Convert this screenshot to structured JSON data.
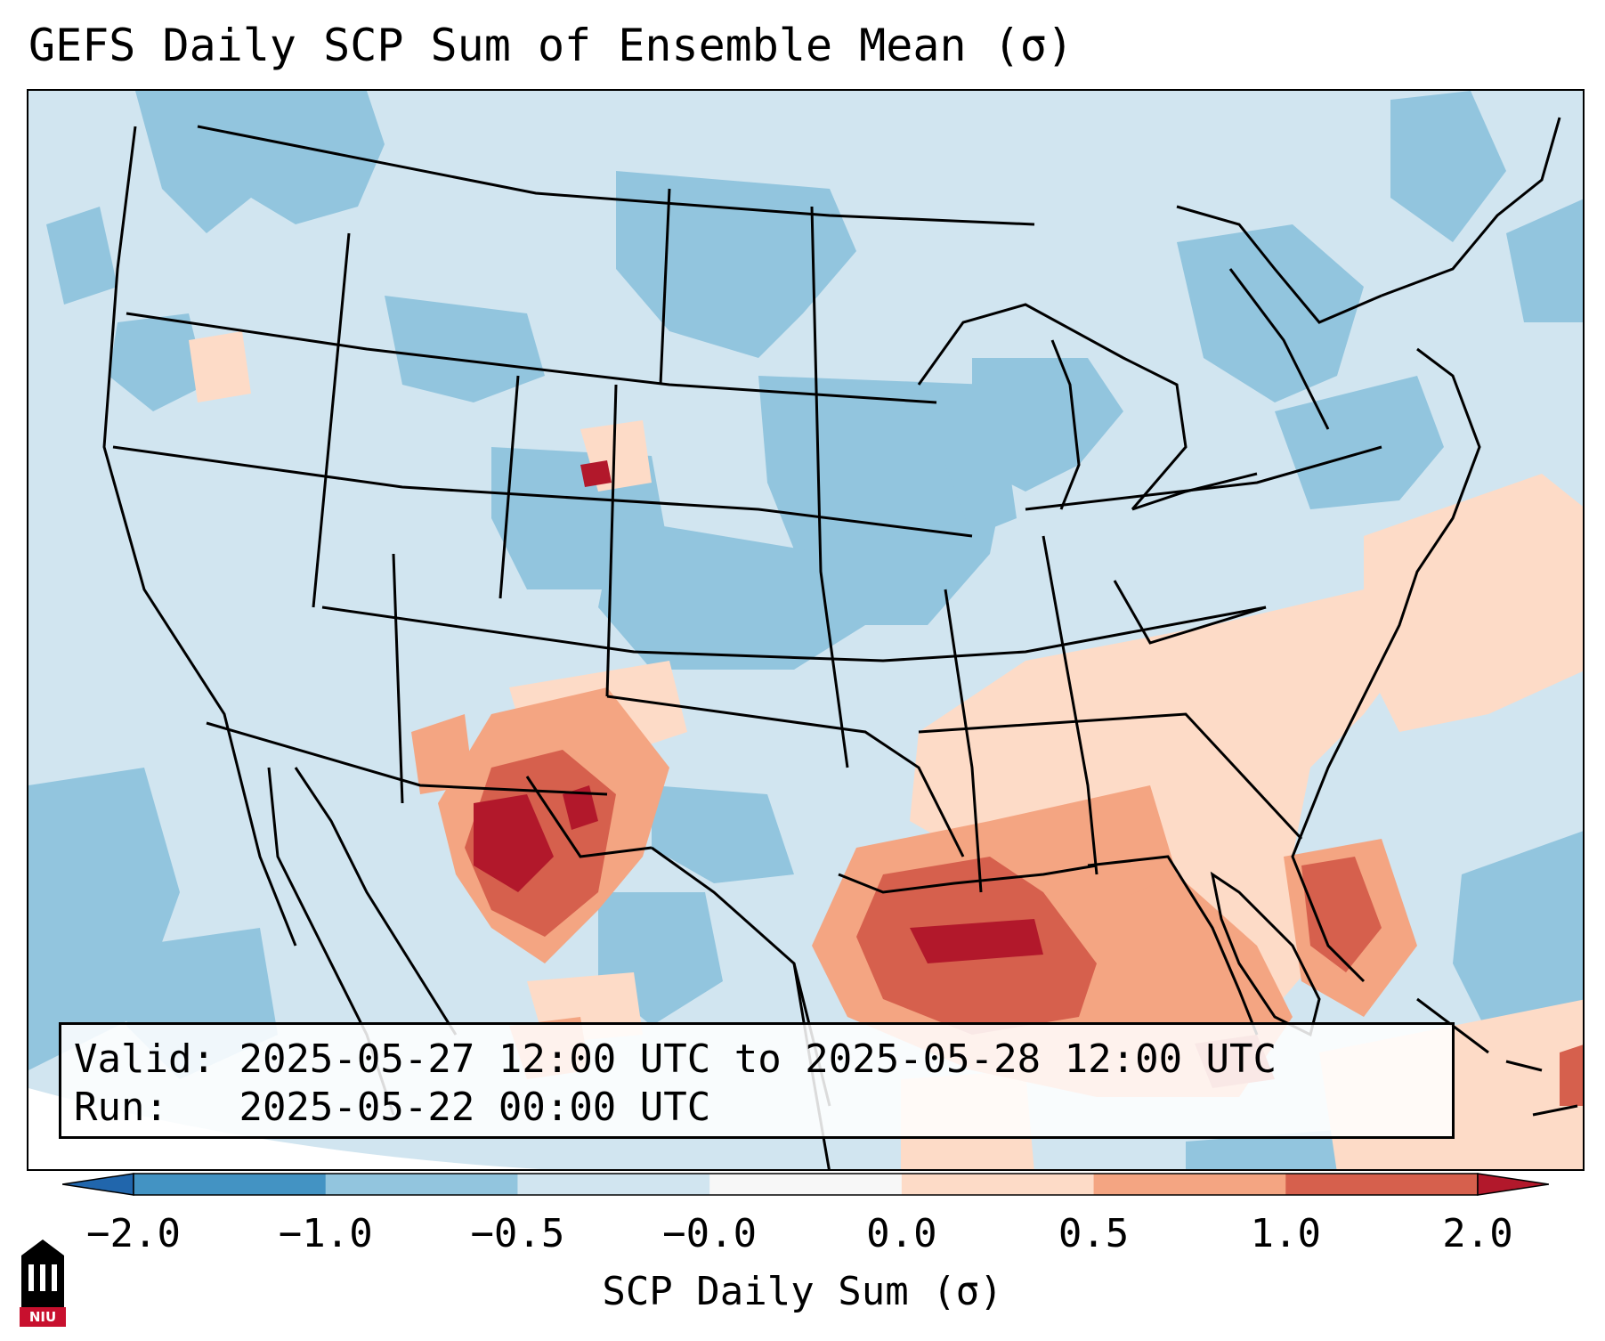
{
  "title": "GEFS Daily SCP Sum of Ensemble Mean (σ)",
  "info": {
    "valid_label": "Valid:",
    "valid_value": "2025-05-27 12:00 UTC to 2025-05-28 12:00 UTC",
    "run_label": "Run:",
    "run_value": "2025-05-22 00:00 UTC"
  },
  "colorbar": {
    "label": "SCP Daily Sum (σ)",
    "ticks": [
      "−2.0",
      "−1.0",
      "−0.5",
      "−0.0",
      "0.0",
      "0.5",
      "1.0",
      "2.0"
    ],
    "colors": [
      "#4393c3",
      "#92c5de",
      "#d1e5f0",
      "#f7f7f7",
      "#fddbc7",
      "#f4a582",
      "#d6604d",
      "#b2182b"
    ]
  },
  "logo": {
    "text": "NIU",
    "color": "#c8102e"
  },
  "map_regions": [
    {
      "name": "northwest",
      "category": "below -0.5",
      "color": "#92c5de"
    },
    {
      "name": "northern-plains",
      "category": "below -0.5",
      "color": "#92c5de"
    },
    {
      "name": "midwest",
      "category": "below -0.5",
      "color": "#92c5de"
    },
    {
      "name": "new-mexico-west-texas",
      "category": "1.0 to 2.0",
      "color": "#d6604d"
    },
    {
      "name": "gulf-coast",
      "category": "1.0 to 2.0",
      "color": "#d6604d"
    },
    {
      "name": "southeast",
      "category": "0.0 to 0.5",
      "color": "#fddbc7"
    }
  ]
}
